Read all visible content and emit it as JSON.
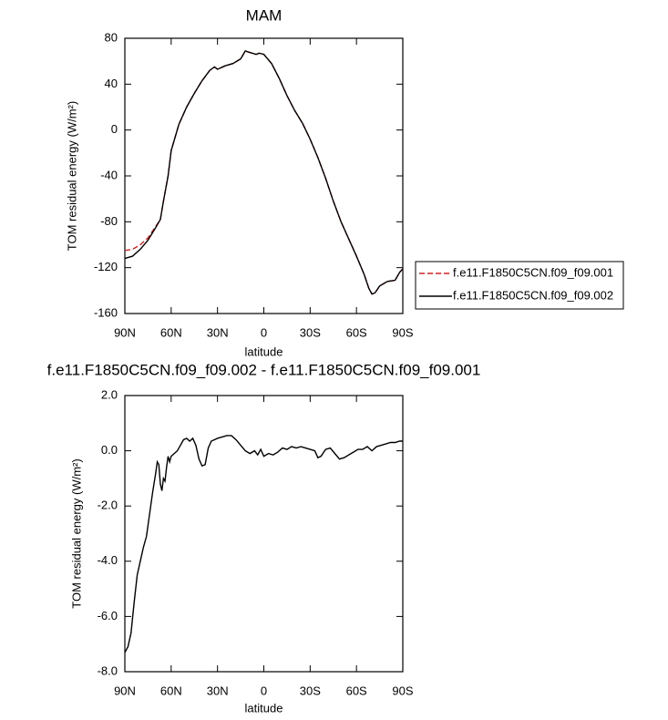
{
  "chart_data": [
    {
      "type": "line",
      "title": "MAM",
      "xlabel": "latitude",
      "ylabel": "TOM residual energy (W/m²)",
      "x": [
        90,
        85,
        80,
        75,
        70,
        67,
        65,
        62,
        60,
        55,
        50,
        45,
        40,
        35,
        32,
        30,
        25,
        20,
        15,
        12,
        10,
        5,
        3,
        0,
        -5,
        -10,
        -15,
        -20,
        -25,
        -30,
        -35,
        -40,
        -45,
        -50,
        -55,
        -60,
        -65,
        -68,
        -70,
        -72,
        -75,
        -80,
        -85,
        -88,
        -90
      ],
      "series": [
        {
          "name": "f.e11.F1850C5CN.f09_f09.001",
          "color": "#d62020",
          "line_style": "dashed",
          "values": [
            -105,
            -104,
            -100,
            -94,
            -84,
            -78,
            -62,
            -40,
            -18,
            5,
            20,
            32,
            43,
            52,
            55,
            53,
            56,
            58,
            62,
            69,
            68,
            66,
            67,
            66,
            58,
            45,
            30,
            17,
            6,
            -8,
            -24,
            -42,
            -62,
            -80,
            -95,
            -110,
            -126,
            -138,
            -143,
            -142,
            -136,
            -132,
            -131,
            -124,
            -121
          ]
        },
        {
          "name": "f.e11.F1850C5CN.f09_f09.002",
          "color": "#000000",
          "line_style": "solid",
          "values": [
            -112,
            -110,
            -104,
            -96,
            -85,
            -78,
            -62,
            -40,
            -18,
            5,
            20,
            32,
            43,
            52,
            55,
            53,
            56,
            58,
            62,
            69,
            68,
            66,
            67,
            66,
            58,
            45,
            30,
            17,
            6,
            -8,
            -24,
            -42,
            -62,
            -80,
            -95,
            -110,
            -126,
            -138,
            -143,
            -142,
            -136,
            -132,
            -131,
            -124,
            -121
          ]
        }
      ],
      "xlim": [
        90,
        -90
      ],
      "xticks": [
        {
          "value": 90,
          "label": "90N"
        },
        {
          "value": 60,
          "label": "60N"
        },
        {
          "value": 30,
          "label": "30N"
        },
        0,
        {
          "value": -30,
          "label": "30S"
        },
        {
          "value": -60,
          "label": "60S"
        },
        {
          "value": -90,
          "label": "90S"
        }
      ],
      "ylim": [
        -160,
        80
      ],
      "yticks": [
        -160,
        -120,
        -80,
        -40,
        0,
        40,
        80
      ],
      "legend": "outside-right"
    },
    {
      "type": "line",
      "title": "f.e11.F1850C5CN.f09_f09.002 - f.e11.F1850C5CN.f09_f09.001",
      "xlabel": "latitude",
      "ylabel": "TOM residual energy (W/m²)",
      "x": [
        90,
        88,
        86,
        84,
        82,
        80,
        78,
        76,
        74,
        72,
        70,
        69,
        68,
        67,
        66,
        65,
        64,
        63,
        62,
        61,
        60,
        58,
        56,
        54,
        52,
        50,
        48,
        46,
        44,
        42,
        40,
        38,
        36,
        34,
        32,
        30,
        27,
        24,
        21,
        18,
        15,
        12,
        9,
        6,
        4,
        2,
        0,
        -3,
        -6,
        -9,
        -12,
        -15,
        -18,
        -21,
        -24,
        -27,
        -30,
        -33,
        -35,
        -37,
        -40,
        -43,
        -46,
        -49,
        -52,
        -55,
        -58,
        -61,
        -64,
        -67,
        -70,
        -73,
        -76,
        -79,
        -82,
        -85,
        -88,
        -90
      ],
      "values": [
        -7.3,
        -7.1,
        -6.6,
        -5.5,
        -4.5,
        -4.0,
        -3.5,
        -3.1,
        -2.3,
        -1.5,
        -0.8,
        -0.4,
        -0.5,
        -1.2,
        -1.45,
        -1.0,
        -1.1,
        -0.6,
        -0.2,
        -0.4,
        -0.2,
        -0.1,
        0.0,
        0.2,
        0.4,
        0.45,
        0.35,
        0.45,
        0.2,
        -0.3,
        -0.55,
        -0.5,
        0.1,
        0.35,
        0.4,
        0.45,
        0.5,
        0.55,
        0.55,
        0.4,
        0.2,
        0.0,
        -0.1,
        0.0,
        -0.15,
        0.05,
        -0.2,
        -0.1,
        -0.15,
        -0.05,
        0.1,
        0.05,
        0.15,
        0.1,
        0.15,
        0.1,
        0.05,
        0.0,
        -0.25,
        -0.2,
        0.05,
        0.1,
        -0.1,
        -0.3,
        -0.25,
        -0.15,
        -0.05,
        0.05,
        0.05,
        0.15,
        0.0,
        0.15,
        0.2,
        0.25,
        0.3,
        0.3,
        0.35,
        0.35
      ],
      "color": "#000000",
      "xlim": [
        90,
        -90
      ],
      "xticks": [
        {
          "value": 90,
          "label": "90N"
        },
        {
          "value": 60,
          "label": "60N"
        },
        {
          "value": 30,
          "label": "30N"
        },
        0,
        {
          "value": -30,
          "label": "30S"
        },
        {
          "value": -60,
          "label": "60S"
        },
        {
          "value": -90,
          "label": "90S"
        }
      ],
      "ylim": [
        -8,
        2
      ],
      "yticks": [
        {
          "value": -8,
          "label": "-8.0"
        },
        {
          "value": -6,
          "label": "-6.0"
        },
        {
          "value": -4,
          "label": "-4.0"
        },
        {
          "value": -2,
          "label": "-2.0"
        },
        {
          "value": 0,
          "label": "0.0"
        },
        {
          "value": 2,
          "label": "2.0"
        }
      ]
    }
  ]
}
